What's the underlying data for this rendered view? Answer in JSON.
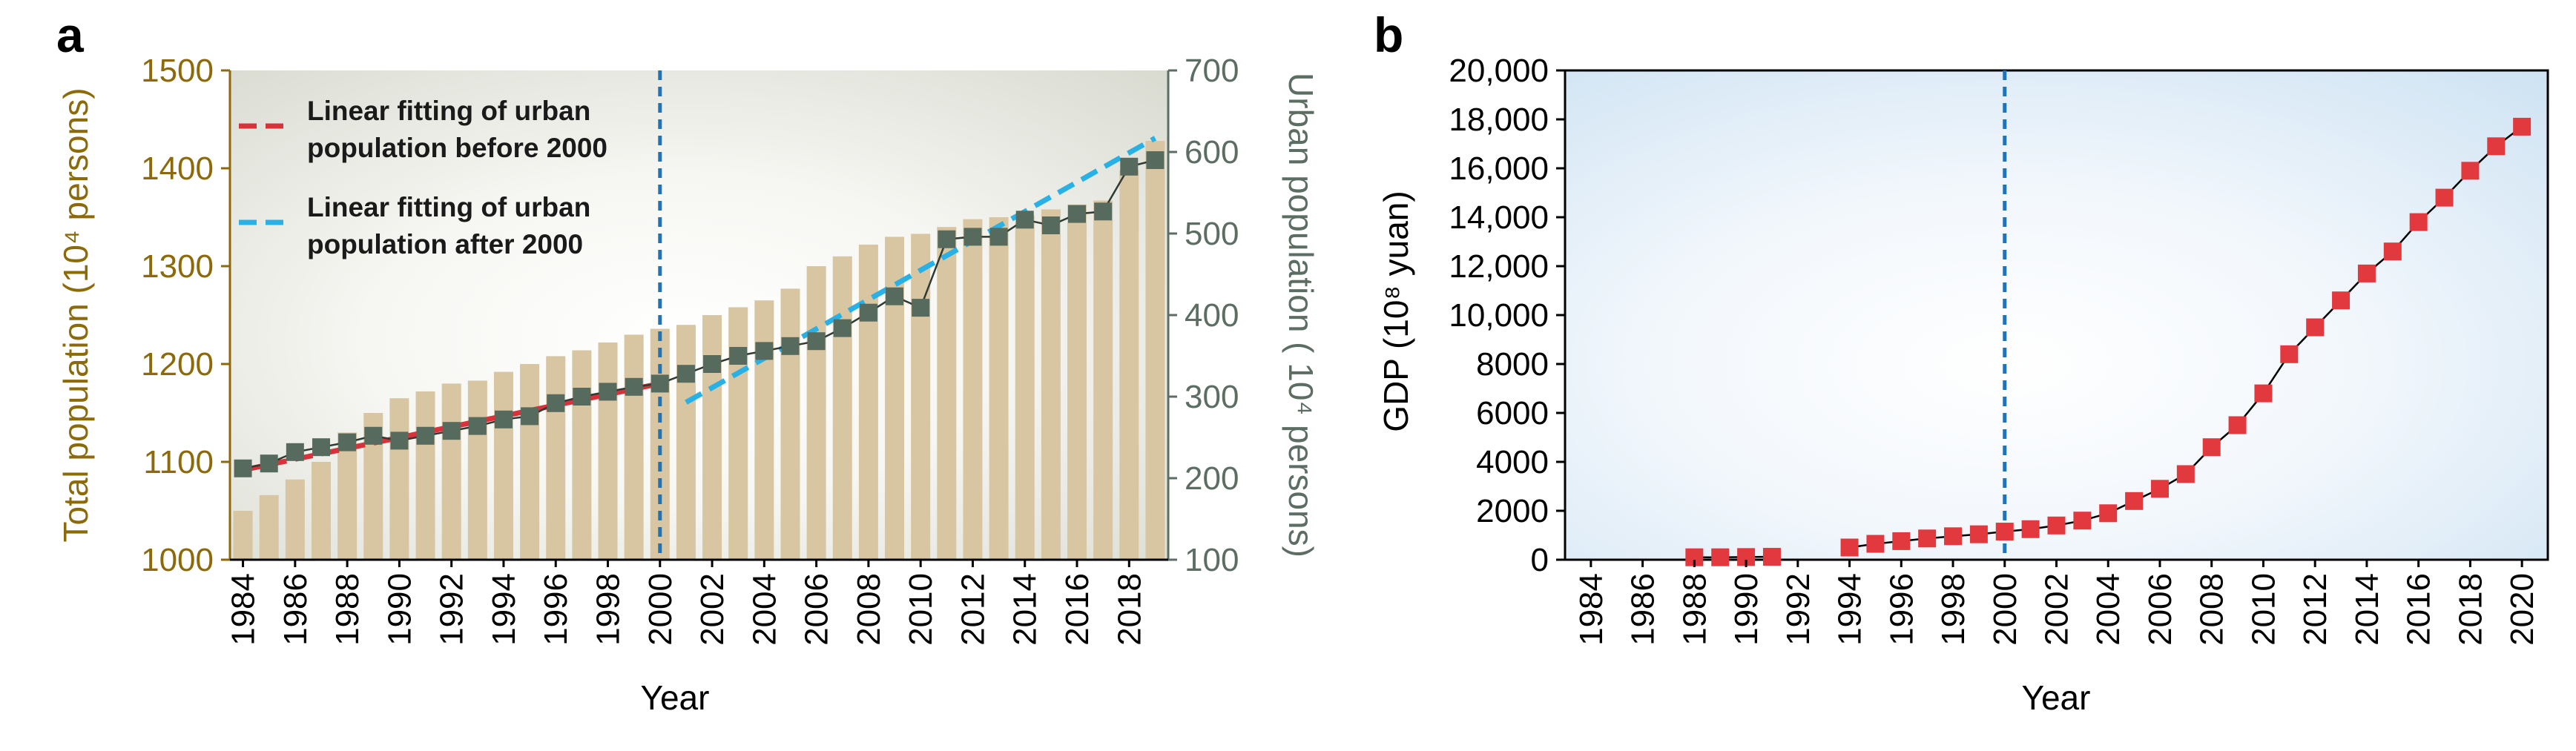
{
  "colors": {
    "bar": "#d8c5a2",
    "total_axis": "#8c6a0a",
    "urban_marker": "#566a5e",
    "urban_axis": "#5c6e63",
    "fit_before": "#d9323a",
    "fit_after": "#29b1e6",
    "divider": "#1f73b8",
    "gdp_marker": "#e2393e",
    "black": "#000000"
  },
  "chart_data": [
    {
      "panel": "a",
      "type": "bar",
      "title": "",
      "xlabel": "Year",
      "ylabel_left": "Total population (10⁴ persons)",
      "ylabel_right": "Urban population ( 10⁴ persons)",
      "ylim_left": [
        1000,
        1500
      ],
      "yticks_left": [
        "1000",
        "1100",
        "1200",
        "1300",
        "1400",
        "1500"
      ],
      "ylim_right": [
        100,
        700
      ],
      "yticks_right": [
        "100",
        "200",
        "300",
        "400",
        "500",
        "600",
        "700"
      ],
      "xlim": [
        1983.5,
        2019.5
      ],
      "xticks": [
        "1984",
        "1986",
        "1988",
        "1990",
        "1992",
        "1994",
        "1996",
        "1998",
        "2000",
        "2002",
        "2004",
        "2006",
        "2008",
        "2010",
        "2012",
        "2014",
        "2016",
        "2018"
      ],
      "grid": false,
      "divider_year": 2000,
      "categories": [
        1984,
        1985,
        1986,
        1987,
        1988,
        1989,
        1990,
        1991,
        1992,
        1993,
        1994,
        1995,
        1996,
        1997,
        1998,
        1999,
        2000,
        2001,
        2002,
        2003,
        2004,
        2005,
        2006,
        2007,
        2008,
        2009,
        2010,
        2011,
        2012,
        2013,
        2014,
        2015,
        2016,
        2017,
        2018,
        2019
      ],
      "series": [
        {
          "name": "Total population",
          "type": "bar",
          "axis": "left",
          "values": [
            1050,
            1066,
            1082,
            1100,
            1130,
            1150,
            1165,
            1172,
            1180,
            1183,
            1192,
            1200,
            1208,
            1214,
            1222,
            1230,
            1236,
            1240,
            1250,
            1258,
            1265,
            1277,
            1300,
            1310,
            1322,
            1330,
            1333,
            1340,
            1348,
            1350,
            1352,
            1358,
            1363,
            1367,
            1398,
            1428
          ]
        },
        {
          "name": "Urban population",
          "type": "line",
          "axis": "right",
          "values": [
            212,
            218,
            232,
            238,
            244,
            252,
            246,
            252,
            258,
            264,
            272,
            276,
            292,
            300,
            306,
            312,
            316,
            328,
            340,
            350,
            356,
            362,
            368,
            384,
            403,
            423,
            409,
            493,
            496,
            496,
            517,
            510,
            524,
            527,
            582,
            590
          ]
        }
      ],
      "fits": [
        {
          "label": "Linear fitting of urban population before 2000",
          "x": [
            1984,
            2000
          ],
          "y": [
            210,
            316
          ]
        },
        {
          "label": "Linear fitting of urban population after 2000",
          "x": [
            2001,
            2019
          ],
          "y": [
            293,
            617
          ]
        }
      ],
      "legend": [
        {
          "line1": "Linear fitting of urban",
          "line2": "population before 2000"
        },
        {
          "line1": "Linear fitting of urban",
          "line2": "population after 2000"
        }
      ],
      "legend_position": "top-left"
    },
    {
      "panel": "b",
      "type": "scatter",
      "title": "",
      "xlabel": "Year",
      "ylabel": "GDP (10⁸ yuan)",
      "ylim": [
        0,
        20000
      ],
      "yticks": [
        "0",
        "2000",
        "4000",
        "6000",
        "8000",
        "10,000",
        "12,000",
        "14,000",
        "16,000",
        "18,000",
        "20,000"
      ],
      "xlim": [
        1983,
        2021
      ],
      "xticks": [
        "1984",
        "1986",
        "1988",
        "1990",
        "1992",
        "1994",
        "1996",
        "1998",
        "2000",
        "2002",
        "2004",
        "2006",
        "2008",
        "2010",
        "2012",
        "2014",
        "2016",
        "2018",
        "2020"
      ],
      "grid": false,
      "divider_year": 2000,
      "segments": [
        {
          "x": [
            1988,
            1989,
            1990,
            1991
          ],
          "y": [
            100,
            100,
            110,
            120
          ]
        },
        {
          "x": [
            1994,
            1995,
            1996,
            1997,
            1998,
            1999,
            2000,
            2001,
            2002,
            2003,
            2004,
            2005,
            2006,
            2007,
            2008,
            2009,
            2010,
            2011,
            2012,
            2013,
            2014,
            2015,
            2016,
            2017,
            2018,
            2019,
            2020
          ],
          "y": [
            500,
            650,
            760,
            870,
            960,
            1040,
            1150,
            1250,
            1400,
            1600,
            1900,
            2400,
            2900,
            3500,
            4600,
            5500,
            6800,
            8400,
            9500,
            10600,
            11700,
            12600,
            13800,
            14800,
            15900,
            16900,
            17700
          ]
        }
      ]
    }
  ]
}
